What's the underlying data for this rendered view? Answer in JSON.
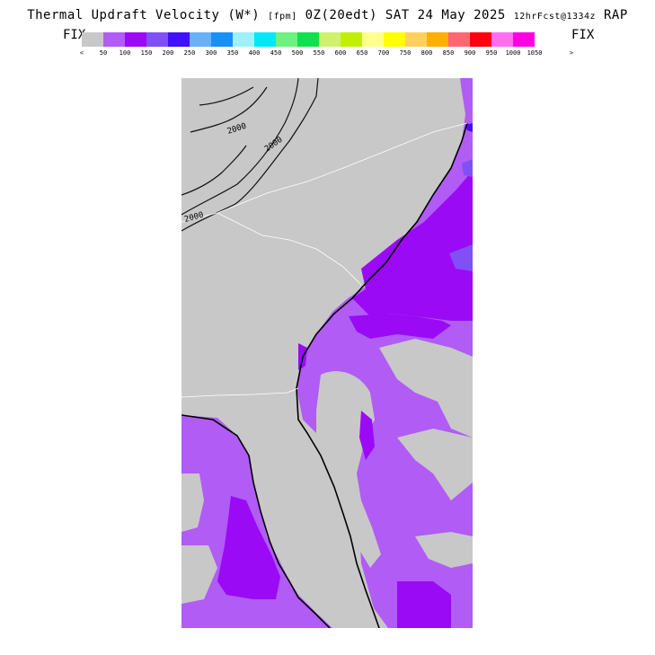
{
  "header": {
    "title_main": "Thermal Updraft Velocity (W*)",
    "unit": "[fpm]",
    "valid": "0Z(20edt) SAT 24 May 2025",
    "forecast": "12hrFcst@1334z",
    "model": "RAP"
  },
  "fix_left": "FIX",
  "fix_right": "FIX",
  "legend": {
    "left_arrow": "<",
    "right_arrow": ">",
    "colors": [
      "#c8c8c8",
      "#b05cf5",
      "#9a0af5",
      "#8050f5",
      "#4010ff",
      "#6ab0f8",
      "#1a90f0",
      "#a0f0f8",
      "#00e8f8",
      "#70f080",
      "#10e050",
      "#d0f070",
      "#c0f000",
      "#ffff90",
      "#ffff00",
      "#ffd060",
      "#ffb000",
      "#ff6870",
      "#ff0010",
      "#ff70f0",
      "#ff00e0"
    ],
    "labels": [
      "50",
      "100",
      "150",
      "200",
      "250",
      "300",
      "350",
      "400",
      "450",
      "500",
      "550",
      "600",
      "650",
      "700",
      "750",
      "800",
      "850",
      "900",
      "950",
      "1000",
      "1050"
    ]
  },
  "map": {
    "contour_label": "2000",
    "colors": {
      "background": "#c8c8c8",
      "light_purple": "#b05cf5",
      "purple": "#9a0af5",
      "blue_purple": "#8050f5",
      "blue": "#4010ff"
    }
  }
}
